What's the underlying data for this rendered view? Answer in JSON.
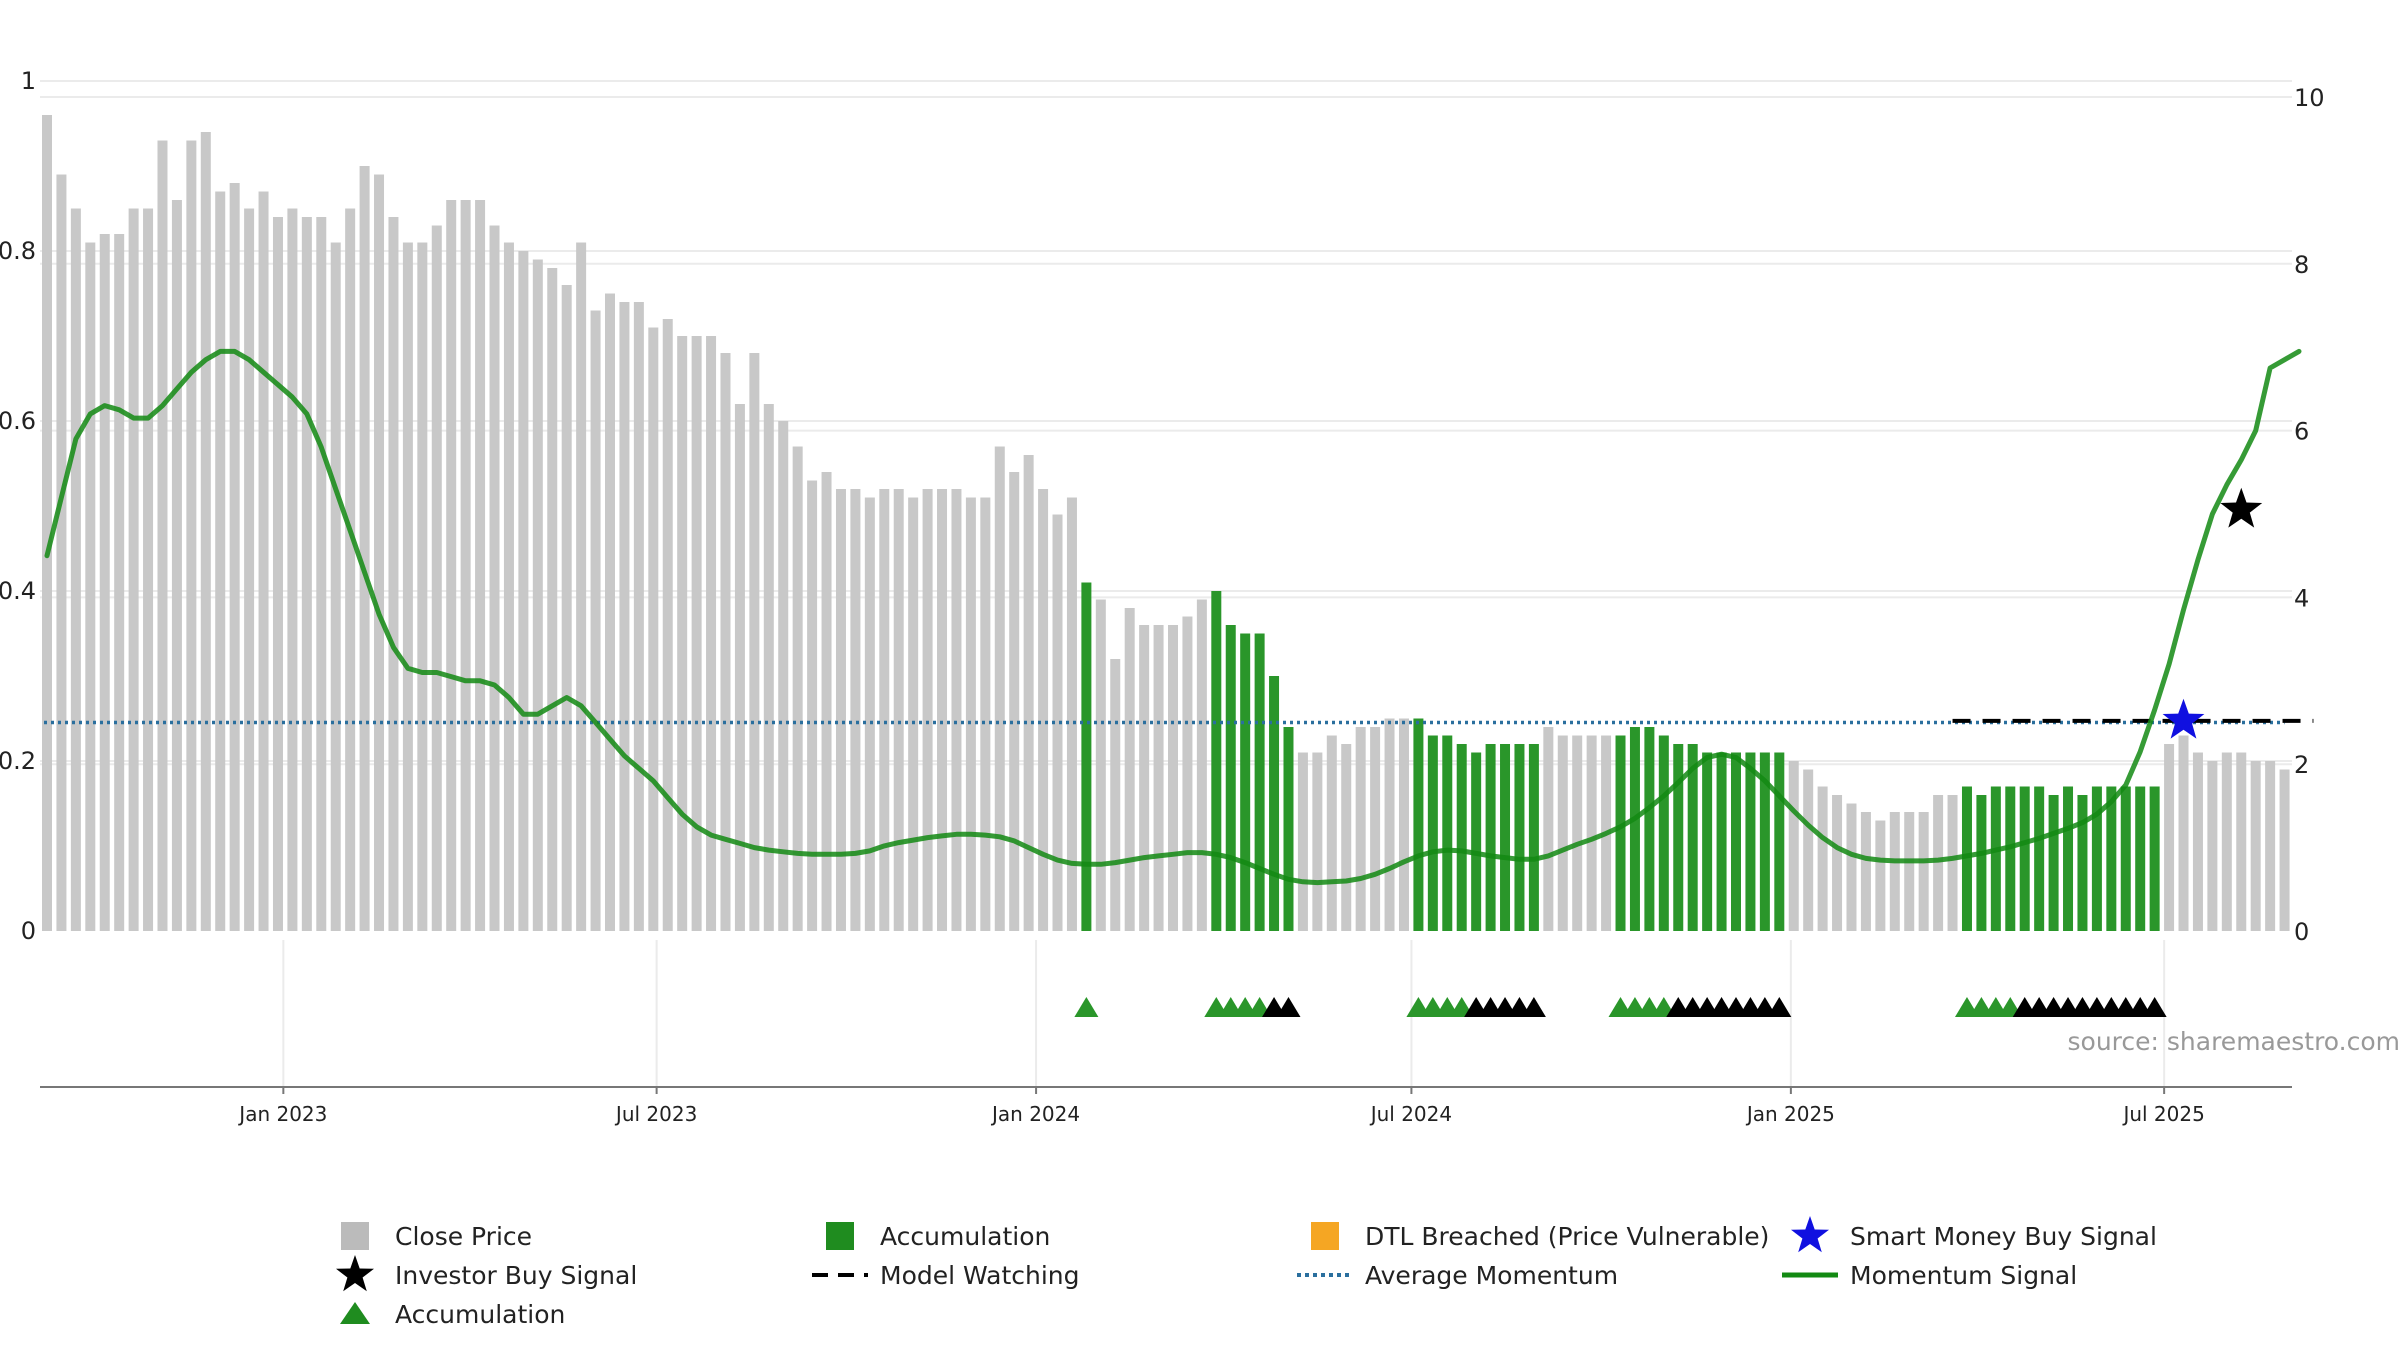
{
  "chart_data": {
    "type": "bar",
    "title": "",
    "left_axis": {
      "ylim": [
        0,
        1
      ],
      "ticks": [
        0,
        0.2,
        0.4,
        0.6,
        0.8,
        1
      ],
      "tick_labels": [
        "0",
        "0.2",
        "0.4",
        "0.6",
        "0.8",
        "1"
      ]
    },
    "right_axis": {
      "ylim": [
        0,
        10
      ],
      "ticks": [
        0,
        2,
        4,
        6,
        8,
        10
      ],
      "tick_labels": [
        "0",
        "2",
        "4",
        "6",
        "8",
        "10"
      ]
    },
    "x_axis": {
      "start": "2022-09-05",
      "end": "2025-09-01",
      "ticks": [
        {
          "date": "2023-01-01",
          "label": "Jan 2023"
        },
        {
          "date": "2023-07-01",
          "label": "Jul 2023"
        },
        {
          "date": "2024-01-01",
          "label": "Jan 2024"
        },
        {
          "date": "2024-07-01",
          "label": "Jul 2024"
        },
        {
          "date": "2025-01-01",
          "label": "Jan 2025"
        },
        {
          "date": "2025-07-01",
          "label": "Jul 2025"
        }
      ]
    },
    "grid": true,
    "bar_start_date": "2022-09-05",
    "bar_interval_days": 7,
    "close_price": [
      0.96,
      0.89,
      0.85,
      0.81,
      0.82,
      0.82,
      0.85,
      0.85,
      0.93,
      0.86,
      0.93,
      0.94,
      0.87,
      0.88,
      0.85,
      0.87,
      0.84,
      0.85,
      0.84,
      0.84,
      0.81,
      0.85,
      0.9,
      0.89,
      0.84,
      0.81,
      0.81,
      0.83,
      0.86,
      0.86,
      0.86,
      0.83,
      0.81,
      0.8,
      0.79,
      0.78,
      0.76,
      0.81,
      0.73,
      0.75,
      0.74,
      0.74,
      0.71,
      0.72,
      0.7,
      0.7,
      0.7,
      0.68,
      0.62,
      0.68,
      0.62,
      0.6,
      0.57,
      0.53,
      0.54,
      0.52,
      0.52,
      0.51,
      0.52,
      0.52,
      0.51,
      0.52,
      0.52,
      0.52,
      0.51,
      0.51,
      0.57,
      0.54,
      0.56,
      0.52,
      0.49,
      0.51,
      0.41,
      0.39,
      0.32,
      0.38,
      0.36,
      0.36,
      0.36,
      0.37,
      0.39,
      0.4,
      0.36,
      0.35,
      0.35,
      0.3,
      0.24,
      0.21,
      0.21,
      0.23,
      0.22,
      0.24,
      0.24,
      0.25,
      0.25,
      0.25,
      0.23,
      0.23,
      0.22,
      0.21,
      0.22,
      0.22,
      0.22,
      0.22,
      0.24,
      0.23,
      0.23,
      0.23,
      0.23,
      0.23,
      0.24,
      0.24,
      0.23,
      0.22,
      0.22,
      0.21,
      0.21,
      0.21,
      0.21,
      0.21,
      0.21,
      0.2,
      0.19,
      0.17,
      0.16,
      0.15,
      0.14,
      0.13,
      0.14,
      0.14,
      0.14,
      0.16,
      0.16,
      0.17,
      0.16,
      0.17,
      0.17,
      0.17,
      0.17,
      0.16,
      0.17,
      0.16,
      0.17,
      0.17,
      0.17,
      0.17,
      0.17,
      0.22,
      0.23,
      0.21,
      0.2,
      0.21,
      0.21,
      0.2,
      0.2,
      0.19
    ],
    "accumulation_ranges": [
      [
        72,
        72
      ],
      [
        81,
        86
      ],
      [
        95,
        103
      ],
      [
        109,
        120
      ],
      [
        133,
        146
      ]
    ],
    "momentum_signal": [
      4.5,
      5.2,
      5.9,
      6.2,
      6.3,
      6.25,
      6.15,
      6.15,
      6.3,
      6.5,
      6.7,
      6.85,
      6.95,
      6.95,
      6.85,
      6.7,
      6.55,
      6.4,
      6.2,
      5.8,
      5.3,
      4.8,
      4.3,
      3.8,
      3.4,
      3.15,
      3.1,
      3.1,
      3.05,
      3.0,
      3.0,
      2.95,
      2.8,
      2.6,
      2.6,
      2.7,
      2.8,
      2.7,
      2.5,
      2.3,
      2.1,
      1.95,
      1.8,
      1.6,
      1.4,
      1.25,
      1.15,
      1.1,
      1.05,
      1.0,
      0.97,
      0.95,
      0.93,
      0.92,
      0.92,
      0.92,
      0.93,
      0.96,
      1.02,
      1.06,
      1.09,
      1.12,
      1.14,
      1.16,
      1.16,
      1.15,
      1.13,
      1.08,
      1.0,
      0.92,
      0.85,
      0.81,
      0.8,
      0.8,
      0.82,
      0.85,
      0.88,
      0.9,
      0.92,
      0.94,
      0.94,
      0.92,
      0.88,
      0.82,
      0.75,
      0.68,
      0.62,
      0.59,
      0.58,
      0.59,
      0.6,
      0.63,
      0.68,
      0.75,
      0.83,
      0.9,
      0.95,
      0.97,
      0.96,
      0.93,
      0.9,
      0.88,
      0.86,
      0.86,
      0.9,
      0.97,
      1.04,
      1.1,
      1.17,
      1.25,
      1.35,
      1.48,
      1.62,
      1.78,
      1.95,
      2.08,
      2.12,
      2.08,
      1.95,
      1.8,
      1.62,
      1.44,
      1.27,
      1.12,
      1.0,
      0.92,
      0.87,
      0.85,
      0.84,
      0.84,
      0.84,
      0.85,
      0.87,
      0.9,
      0.93,
      0.97,
      1.01,
      1.06,
      1.11,
      1.17,
      1.23,
      1.3,
      1.4,
      1.55,
      1.75,
      2.15,
      2.65,
      3.2,
      3.85,
      4.45,
      5.0,
      5.35,
      5.65,
      6.0,
      6.75,
      6.85,
      6.95
    ],
    "average_momentum": 2.5,
    "model_watching": {
      "start_index": 132,
      "end_index": 157,
      "value": 2.52
    },
    "investor_buy_signal": {
      "index": 152,
      "value": 5.05
    },
    "smart_money_buy_signal": {
      "index": 148,
      "value": 2.52
    },
    "accumulation_triangles": {
      "green": [
        72,
        81,
        82,
        83,
        84,
        95,
        96,
        97,
        98,
        109,
        110,
        111,
        112,
        133,
        134,
        135,
        136
      ],
      "black": [
        85,
        86,
        99,
        100,
        101,
        102,
        103,
        113,
        114,
        115,
        116,
        117,
        118,
        119,
        120,
        137,
        138,
        139,
        140,
        141,
        142,
        143,
        144,
        145,
        146
      ]
    },
    "legend": [
      {
        "name": "Close Price",
        "marker": "square",
        "color": "#bbbbbb"
      },
      {
        "name": "Accumulation",
        "marker": "square",
        "color": "#1f8c1f"
      },
      {
        "name": "DTL Breached (Price Vulnerable)",
        "marker": "square",
        "color": "#f5a623"
      },
      {
        "name": "Smart Money Buy Signal",
        "marker": "star",
        "color": "#1010e0"
      },
      {
        "name": "Investor Buy Signal",
        "marker": "star",
        "color": "#000000"
      },
      {
        "name": "Model Watching",
        "marker": "dash",
        "color": "#000000"
      },
      {
        "name": "Average Momentum",
        "marker": "dot",
        "color": "#2a6f9e"
      },
      {
        "name": "Momentum Signal",
        "marker": "line",
        "color": "#138a13"
      },
      {
        "name": "Accumulation",
        "marker": "triangle",
        "color": "#1f8c1f"
      }
    ],
    "legend_placement": "bottom-center",
    "source": "source: sharemaestro.com"
  },
  "colors": {
    "close_price": "#c8c8c8",
    "accumulation": "#2a962a",
    "momentum": "#138a13",
    "average_momentum": "#2a6f9e",
    "model_watching": "#000000",
    "smart_money": "#1010e0",
    "investor": "#000000",
    "grid": "#ebebeb",
    "axis": "#777777"
  }
}
